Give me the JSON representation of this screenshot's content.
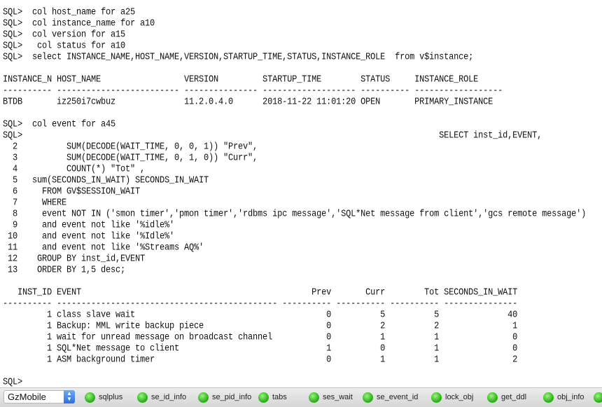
{
  "terminal": {
    "lines": [
      "SQL>  col host_name for a25",
      "SQL>  col instance_name for a10",
      "SQL>  col version for a15",
      "SQL>   col status for a10",
      "SQL>  select INSTANCE_NAME,HOST_NAME,VERSION,STARTUP_TIME,STATUS,INSTANCE_ROLE  from v$instance;",
      "",
      "INSTANCE_N HOST_NAME                 VERSION         STARTUP_TIME        STATUS     INSTANCE_ROLE",
      "---------- ------------------------- --------------- ------------------- ---------- ------------------",
      "BTDB       iz250i7cwbuz              11.2.0.4.0      2018-11-22 11:01:20 OPEN       PRIMARY_INSTANCE",
      "",
      "SQL>  col event for a45",
      "SQL>                                                                                     SELECT inst_id,EVENT,",
      "  2          SUM(DECODE(WAIT_TIME, 0, 0, 1)) \"Prev\",",
      "  3          SUM(DECODE(WAIT_TIME, 0, 1, 0)) \"Curr\",",
      "  4          COUNT(*) \"Tot\" ,",
      "  5   sum(SECONDS_IN_WAIT) SECONDS_IN_WAIT",
      "  6     FROM GV$SESSION_WAIT",
      "  7     WHERE",
      "  8     event NOT IN ('smon timer','pmon timer','rdbms ipc message','SQL*Net message from client','gcs remote message')",
      "  9     and event not like '%idle%'",
      " 10     and event not like '%Idle%'",
      " 11     and event not like '%Streams AQ%'",
      " 12    GROUP BY inst_id,EVENT",
      " 13    ORDER BY 1,5 desc;",
      "",
      "   INST_ID EVENT                                               Prev       Curr        Tot SECONDS_IN_WAIT",
      "---------- --------------------------------------------- ---------- ---------- ---------- ---------------",
      "         1 class slave wait                                       0          5          5              40",
      "         1 Backup: MML write backup piece                         0          2          2               1",
      "         1 wait for unread message on broadcast channel           0          1          1               0",
      "         1 SQL*Net message to client                              1          0          1               0",
      "         1 ASM background timer                                   0          1          1               2",
      "",
      "SQL>"
    ]
  },
  "toolbar": {
    "connection": "GzMobile",
    "stepper_icon": "up-down-arrows",
    "button_icon_color": "#2fb51d",
    "buttons": [
      "sqlplus",
      "se_id_info",
      "se_pid_info",
      "tabs",
      "ses_wait",
      "se_event_id",
      "lock_obj",
      "get_ddl",
      "obj_info",
      ""
    ]
  }
}
